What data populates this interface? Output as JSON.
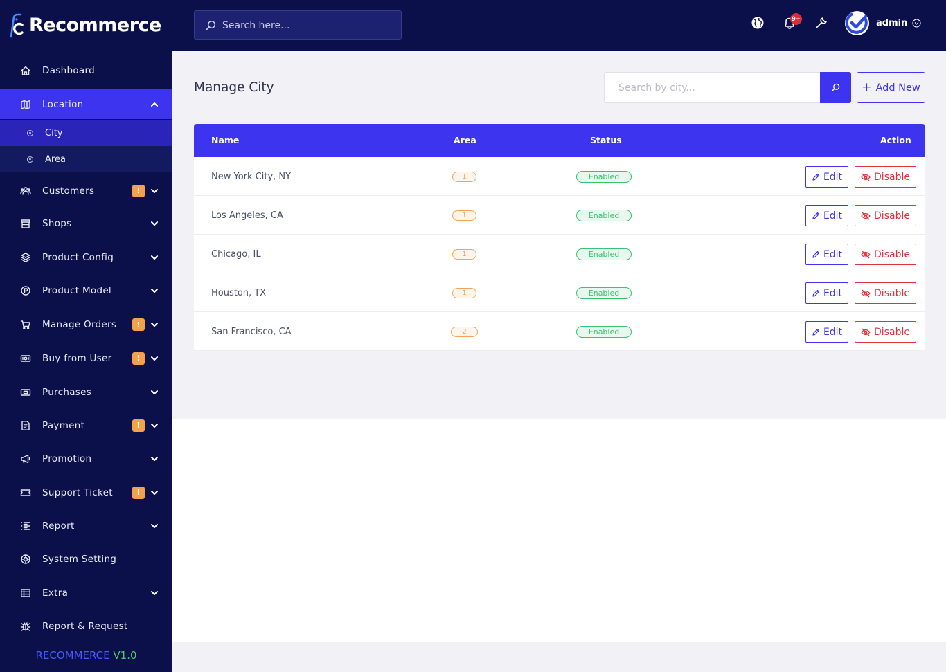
{
  "brand": {
    "name": "Recommerce"
  },
  "sidebar": {
    "items": [
      {
        "label": "Dashboard",
        "icon": "home-icon",
        "chevron": false,
        "badge": null
      },
      {
        "label": "Location",
        "icon": "map-icon",
        "chevron": "up",
        "badge": null,
        "active": true
      },
      {
        "label": "Customers",
        "icon": "users-icon",
        "chevron": "down",
        "badge": "!"
      },
      {
        "label": "Shops",
        "icon": "store-icon",
        "chevron": "down",
        "badge": null
      },
      {
        "label": "Product Config",
        "icon": "box-icon",
        "chevron": "down",
        "badge": null
      },
      {
        "label": "Product Model",
        "icon": "product-icon",
        "chevron": "down",
        "badge": null
      },
      {
        "label": "Manage Orders",
        "icon": "cart-icon",
        "chevron": "down",
        "badge": "!"
      },
      {
        "label": "Buy from User",
        "icon": "cash-icon",
        "chevron": "down",
        "badge": "!"
      },
      {
        "label": "Purchases",
        "icon": "purchase-icon",
        "chevron": "down",
        "badge": null
      },
      {
        "label": "Payment",
        "icon": "payment-icon",
        "chevron": "down",
        "badge": "!"
      },
      {
        "label": "Promotion",
        "icon": "megaphone-icon",
        "chevron": "down",
        "badge": null
      },
      {
        "label": "Support Ticket",
        "icon": "ticket-icon",
        "chevron": "down",
        "badge": "!"
      },
      {
        "label": "Report",
        "icon": "list-icon",
        "chevron": "down",
        "badge": null
      },
      {
        "label": "System Setting",
        "icon": "settings-icon",
        "chevron": false,
        "badge": null
      },
      {
        "label": "Extra",
        "icon": "grid-icon",
        "chevron": "down",
        "badge": null
      },
      {
        "label": "Report & Request",
        "icon": "bug-icon",
        "chevron": false,
        "badge": null
      }
    ],
    "location_sub": [
      {
        "label": "City",
        "active": true
      },
      {
        "label": "Area",
        "active": false
      }
    ],
    "version_name": "RECOMMERCE",
    "version_number": "V1.0"
  },
  "header": {
    "search_placeholder": "Search here...",
    "notification_count": "9+",
    "user_name": "admin"
  },
  "main": {
    "title": "Manage City",
    "search_placeholder": "Search by city...",
    "add_label": "Add New",
    "columns": {
      "name": "Name",
      "area": "Area",
      "status": "Status",
      "action": "Action"
    },
    "rows": [
      {
        "name": "New York City, NY",
        "area": "1",
        "status": "Enabled"
      },
      {
        "name": "Los Angeles, CA",
        "area": "1",
        "status": "Enabled"
      },
      {
        "name": "Chicago, IL",
        "area": "1",
        "status": "Enabled"
      },
      {
        "name": "Houston, TX",
        "area": "1",
        "status": "Enabled"
      },
      {
        "name": "San Francisco, CA",
        "area": "2",
        "status": "Enabled"
      }
    ],
    "edit_label": "Edit",
    "disable_label": "Disable"
  },
  "colors": {
    "sidebar_bg": "#0b0f4a",
    "accent": "#3d34ef",
    "badge": "#f5a04a",
    "enabled": "#36c46d",
    "danger": "#e0313f"
  }
}
